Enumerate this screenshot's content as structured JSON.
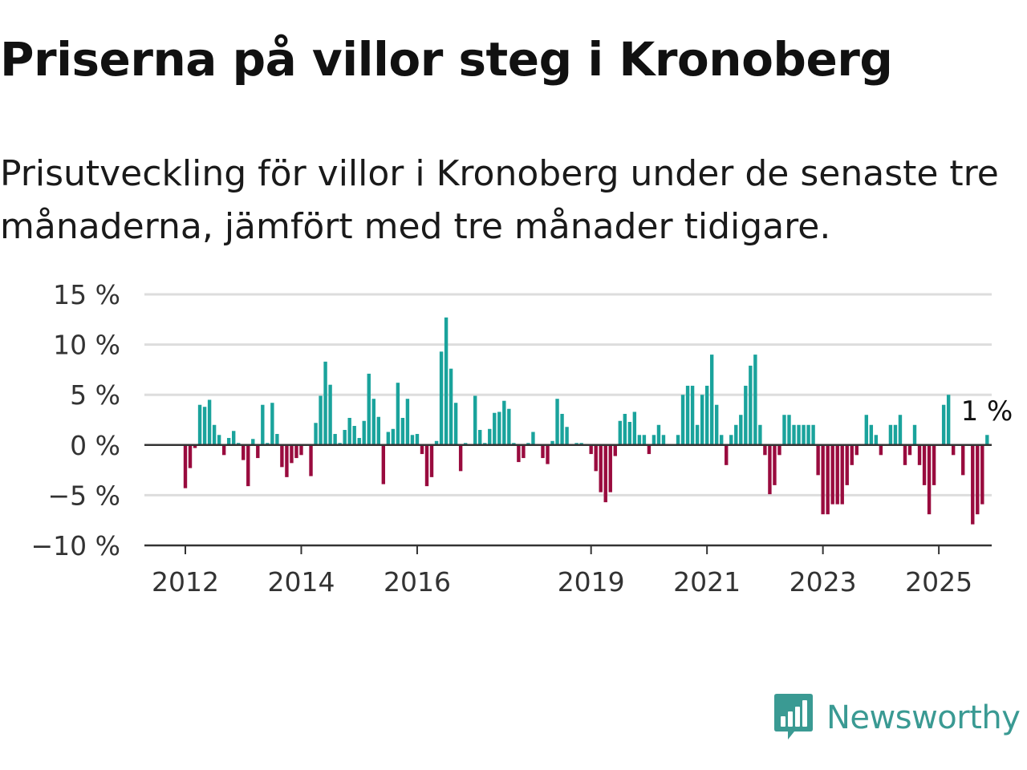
{
  "title": "Priserna på villor steg i Kronoberg",
  "subtitle": "Prisutveckling för villor i Kronoberg under de senaste tre månaderna, jämfört med tre månader tidigare.",
  "brand": {
    "name": "Newsworthy",
    "icon": "newsworthy-logo-icon",
    "color": "#3a9a93"
  },
  "chart_data": {
    "type": "bar",
    "positive_color": "#1aa39c",
    "negative_color": "#990b3e",
    "ylim": [
      -10,
      15
    ],
    "y_ticks": [
      {
        "value": 15,
        "label": "15 %"
      },
      {
        "value": 10,
        "label": "10 %"
      },
      {
        "value": 5,
        "label": "5 %"
      },
      {
        "value": 0,
        "label": "0 %"
      },
      {
        "value": -5,
        "label": "−5 %"
      },
      {
        "value": -10,
        "label": "−10 %"
      }
    ],
    "x_ticks": [
      "2012",
      "2014",
      "2016",
      "2019",
      "2021",
      "2023",
      "2025"
    ],
    "x_start": "2012-01",
    "last_label": "1 %",
    "values": [
      -4.3,
      -2.3,
      -0.3,
      4.0,
      3.8,
      4.5,
      2.0,
      1.0,
      -1.0,
      0.7,
      1.4,
      0.2,
      -1.5,
      -4.1,
      0.6,
      -1.3,
      4.0,
      0.2,
      4.2,
      1.1,
      -2.2,
      -3.2,
      -1.8,
      -1.3,
      -1.0,
      0.1,
      -3.1,
      2.2,
      4.9,
      8.3,
      6.0,
      1.1,
      0.2,
      1.5,
      2.7,
      1.9,
      0.7,
      2.4,
      7.1,
      4.6,
      2.8,
      -3.9,
      1.3,
      1.6,
      6.2,
      2.7,
      4.6,
      1.0,
      1.1,
      -0.9,
      -4.1,
      -3.2,
      0.4,
      9.3,
      12.7,
      7.6,
      4.2,
      -2.6,
      0.2,
      0.1,
      4.9,
      1.5,
      0.2,
      1.6,
      3.2,
      3.3,
      4.4,
      3.6,
      0.2,
      -1.7,
      -1.3,
      0.2,
      1.3,
      0.1,
      -1.3,
      -1.9,
      0.4,
      4.6,
      3.1,
      1.8,
      0.1,
      0.2,
      0.2,
      0.1,
      -0.9,
      -2.6,
      -4.7,
      -5.7,
      -4.7,
      -1.1,
      2.4,
      3.1,
      2.3,
      3.3,
      1.0,
      1.0,
      -0.9,
      1.0,
      2.0,
      1.0,
      0.1,
      0.1,
      1.0,
      5.0,
      5.9,
      5.9,
      2.0,
      5.0,
      5.9,
      9.0,
      4.0,
      1.0,
      -2.0,
      1.0,
      2.0,
      3.0,
      5.9,
      7.9,
      9.0,
      2.0,
      -1.0,
      -4.9,
      -4.0,
      -1.0,
      3.0,
      3.0,
      2.0,
      2.0,
      2.0,
      2.0,
      2.0,
      -3.0,
      -6.9,
      -6.9,
      -5.9,
      -5.9,
      -5.9,
      -4.0,
      -2.0,
      -1.0,
      0.1,
      3.0,
      2.0,
      1.0,
      -1.0,
      0.1,
      2.0,
      2.0,
      3.0,
      -2.0,
      -1.0,
      2.0,
      -2.0,
      -4.0,
      -6.9,
      -4.0,
      0.1,
      4.0,
      5.0,
      -1.0,
      0.1,
      -3.0,
      0.1,
      -7.9,
      -6.9,
      -5.9,
      1.0
    ]
  }
}
